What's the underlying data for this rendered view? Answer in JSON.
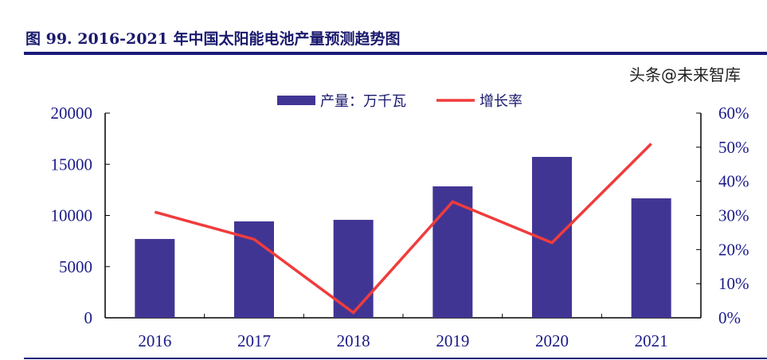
{
  "title": "图 99. 2016-2021 年中国太阳能电池产量预测趋势图",
  "watermark": "头条@未来智库",
  "colors": {
    "bar": "#413594",
    "line": "#f03c3c",
    "axis": "#1a1a8a"
  },
  "chart_data": {
    "type": "bar+line",
    "categories": [
      "2016",
      "2017",
      "2018",
      "2019",
      "2020",
      "2021"
    ],
    "series": [
      {
        "name": "产量：万千瓦",
        "type": "bar",
        "axis": "left",
        "values": [
          7700,
          9420,
          9570,
          12840,
          15720,
          11670
        ]
      },
      {
        "name": "增长率",
        "type": "line",
        "axis": "right",
        "values": [
          31,
          23,
          1.5,
          34,
          22,
          51
        ]
      }
    ],
    "left_axis": {
      "ylim": [
        0,
        20000
      ],
      "ticks": [
        "0",
        "5000",
        "10000",
        "15000",
        "20000"
      ]
    },
    "right_axis": {
      "ylim": [
        0,
        60
      ],
      "ticks": [
        "0%",
        "10%",
        "20%",
        "30%",
        "40%",
        "50%",
        "60%"
      ]
    },
    "legend": "top-center",
    "grid": false
  }
}
